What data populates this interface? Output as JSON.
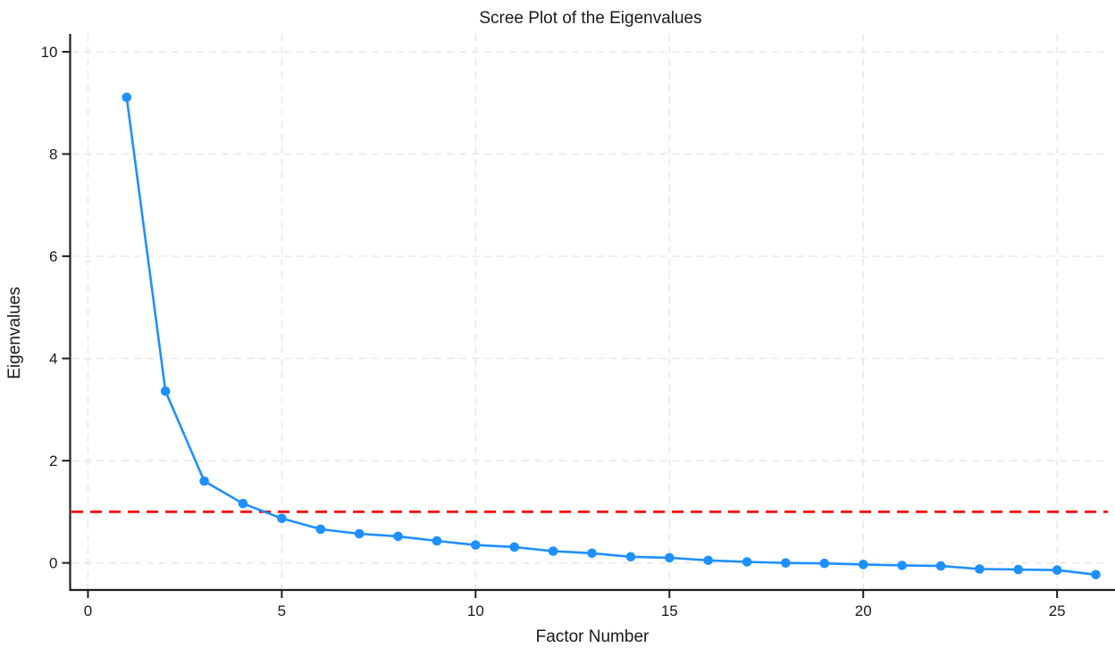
{
  "chart_data": {
    "type": "line",
    "title": "Scree Plot of the Eigenvalues",
    "xlabel": "Factor Number",
    "ylabel": "Eigenvalues",
    "series": [
      {
        "name": "eigenvalues",
        "x": [
          1,
          2,
          3,
          4,
          5,
          6,
          7,
          8,
          9,
          10,
          11,
          12,
          13,
          14,
          15,
          16,
          17,
          18,
          19,
          20,
          21,
          22,
          23,
          24,
          25,
          26
        ],
        "y": [
          9.11,
          3.36,
          1.6,
          1.16,
          0.87,
          0.66,
          0.57,
          0.52,
          0.43,
          0.35,
          0.31,
          0.23,
          0.19,
          0.12,
          0.1,
          0.05,
          0.02,
          0.0,
          -0.01,
          -0.03,
          -0.05,
          -0.06,
          -0.12,
          -0.13,
          -0.14,
          -0.23
        ],
        "color": "#1E90FF",
        "marker": "circle",
        "line_style": "solid"
      }
    ],
    "reference_line": {
      "y": 1,
      "color": "#FF0000",
      "style": "dashed"
    },
    "x_ticks": [
      0,
      5,
      10,
      15,
      20,
      25
    ],
    "y_ticks": [
      0,
      2,
      4,
      6,
      8,
      10
    ],
    "xlim": [
      -0.46,
      26.31
    ],
    "ylim": [
      -0.53,
      10.35
    ],
    "grid": "dashed",
    "grid_color": "#E6E6E6",
    "axis_color": "#1F1F1F",
    "text_color": "#1A1A1A",
    "background": "#FFFFFF",
    "legend": "none"
  }
}
